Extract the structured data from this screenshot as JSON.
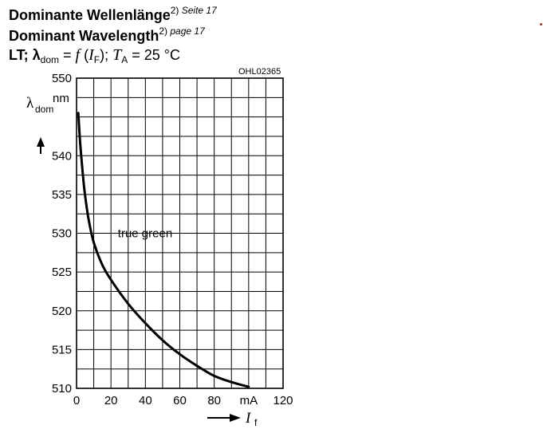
{
  "header": {
    "title_de": "Dominante Wellenlänge",
    "title_de_sup": "2)",
    "title_de_ref": "Seite 17",
    "title_en": "Dominant Wavelength",
    "title_en_sup": "2)",
    "title_en_ref": "page 17",
    "formula_prefix": "LT; λ",
    "formula_sub1": "dom",
    "formula_eq": " = ",
    "formula_f": "f",
    "formula_paren_open": " (",
    "formula_I": "I",
    "formula_sub2": "F",
    "formula_paren_close": "); ",
    "formula_T": "T",
    "formula_sub3": "A",
    "formula_temp": " = 25 °C"
  },
  "figure_code": "OHL02365",
  "chart_data": {
    "type": "line",
    "title": "",
    "xlabel": "I",
    "xlabel_sub": "f",
    "ylabel": "λ",
    "ylabel_sub": "dom",
    "yunit": "nm",
    "xunit": "mA",
    "xlim": [
      0,
      120
    ],
    "ylim": [
      510,
      550
    ],
    "x_grid_step": 10,
    "y_grid_step": 2.5,
    "grid": true,
    "x_ticks": [
      {
        "value": 0,
        "label": "0"
      },
      {
        "value": 20,
        "label": "20"
      },
      {
        "value": 40,
        "label": "40"
      },
      {
        "value": 60,
        "label": "60"
      },
      {
        "value": 80,
        "label": "80"
      },
      {
        "value": 100,
        "label": "mA"
      },
      {
        "value": 120,
        "label": "120"
      }
    ],
    "y_ticks": [
      {
        "value": 510,
        "label": "510"
      },
      {
        "value": 515,
        "label": "515"
      },
      {
        "value": 520,
        "label": "520"
      },
      {
        "value": 525,
        "label": "525"
      },
      {
        "value": 530,
        "label": "530"
      },
      {
        "value": 535,
        "label": "535"
      },
      {
        "value": 540,
        "label": "540"
      },
      {
        "value": 550,
        "label": "550"
      }
    ],
    "series": [
      {
        "name": "true green",
        "x": [
          1,
          2,
          3,
          4,
          5,
          7,
          10,
          15,
          20,
          30,
          40,
          50,
          60,
          70,
          80,
          90,
          100
        ],
        "y": [
          545.5,
          542.0,
          539.2,
          536.8,
          534.8,
          531.8,
          528.8,
          525.9,
          524.0,
          520.9,
          518.4,
          516.2,
          514.4,
          512.9,
          511.6,
          510.8,
          510.2
        ]
      }
    ],
    "annotations": [
      {
        "text": "true green",
        "x": 24,
        "y": 529.5
      }
    ],
    "line_color": "#000000"
  }
}
